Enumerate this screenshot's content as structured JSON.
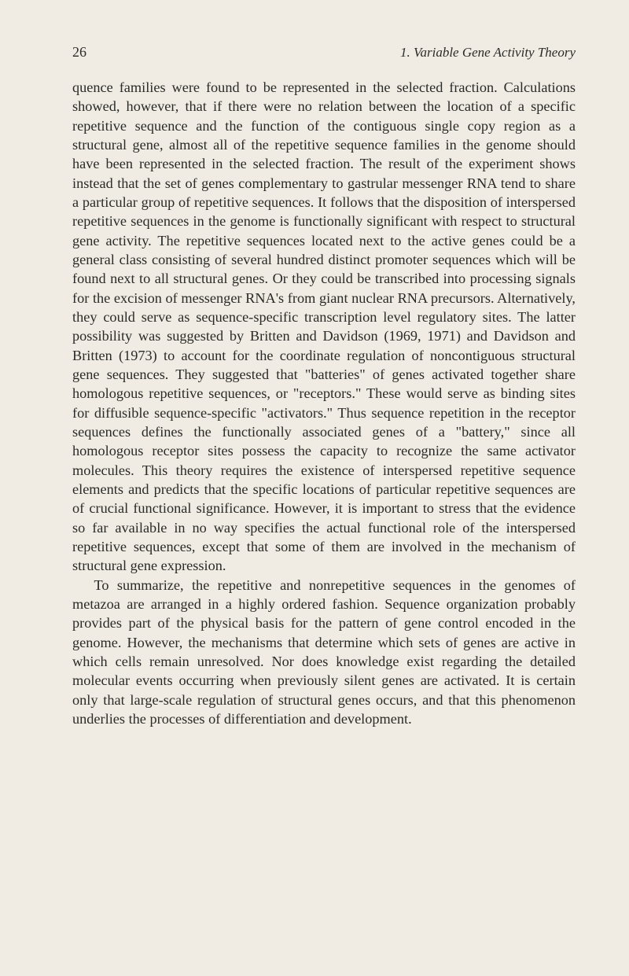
{
  "header": {
    "page_number": "26",
    "chapter_title": "1. Variable Gene Activity Theory"
  },
  "body": {
    "paragraph1": "quence families were found to be represented in the selected fraction. Calculations showed, however, that if there were no relation between the location of a specific repetitive sequence and the function of the contiguous single copy region as a structural gene, almost all of the repetitive sequence families in the genome should have been represented in the selected fraction. The result of the experiment shows instead that the set of genes complementary to gastrular messenger RNA tend to share a particular group of repetitive sequences. It follows that the disposition of interspersed repetitive sequences in the genome is functionally significant with respect to structural gene activity. The repetitive sequences located next to the active genes could be a general class consisting of several hundred distinct promoter sequences which will be found next to all structural genes. Or they could be transcribed into processing signals for the excision of messenger RNA's from giant nuclear RNA precursors. Alternatively, they could serve as sequence-specific transcription level regulatory sites. The latter possibility was suggested by Britten and Davidson (1969, 1971) and Davidson and Britten (1973) to account for the coordinate regulation of noncontiguous structural gene sequences. They suggested that \"batteries\" of genes activated together share homologous repetitive sequences, or \"receptors.\" These would serve as binding sites for diffusible sequence-specific \"activators.\" Thus sequence repetition in the receptor sequences defines the functionally associated genes of a \"battery,\" since all homologous receptor sites possess the capacity to recognize the same activator molecules. This theory requires the existence of interspersed repetitive sequence elements and predicts that the specific locations of particular repetitive sequences are of crucial functional significance. However, it is important to stress that the evidence so far available in no way specifies the actual functional role of the interspersed repetitive sequences, except that some of them are involved in the mechanism of structural gene expression.",
    "paragraph2": "To summarize, the repetitive and nonrepetitive sequences in the genomes of metazoa are arranged in a highly ordered fashion. Sequence organization probably provides part of the physical basis for the pattern of gene control encoded in the genome. However, the mechanisms that determine which sets of genes are active in which cells remain unresolved. Nor does knowledge exist regarding the detailed molecular events occurring when previously silent genes are activated. It is certain only that large-scale regulation of structural genes occurs, and that this phenomenon underlies the processes of differentiation and development."
  },
  "colors": {
    "background": "#f0ece3",
    "text": "#2a2a28"
  },
  "typography": {
    "body_fontsize": 18.3,
    "header_fontsize": 17,
    "line_height": 1.33,
    "font_family": "Times New Roman"
  }
}
